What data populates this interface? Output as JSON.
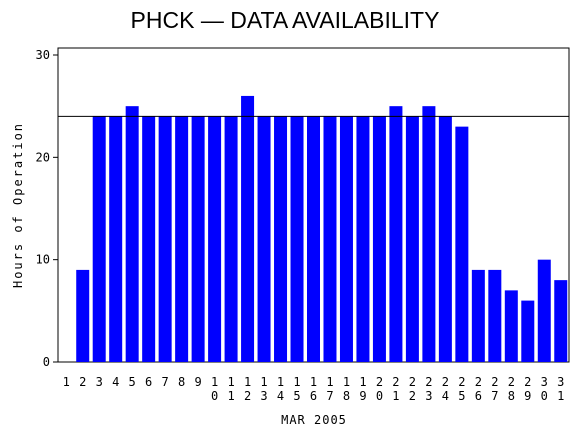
{
  "chart_data": {
    "type": "bar",
    "title": "PHCK — DATA AVAILABILITY",
    "xlabel": "MAR 2005",
    "ylabel": "Hours of Operation",
    "categories": [
      "1",
      "2",
      "3",
      "4",
      "5",
      "6",
      "7",
      "8",
      "9",
      "10",
      "11",
      "12",
      "13",
      "14",
      "15",
      "16",
      "17",
      "18",
      "19",
      "20",
      "21",
      "22",
      "23",
      "24",
      "25",
      "26",
      "27",
      "28",
      "29",
      "30",
      "31"
    ],
    "values": [
      0,
      9,
      24,
      24,
      25,
      24,
      24,
      24,
      24,
      24,
      24,
      26,
      24,
      24,
      24,
      24,
      24,
      24,
      24,
      24,
      25,
      24,
      25,
      24,
      23,
      9,
      9,
      7,
      6,
      10,
      8
    ],
    "color": "#0000ff",
    "ylim": [
      0,
      30
    ],
    "yticks": [
      0,
      10,
      20,
      30
    ],
    "reference_line": 24
  }
}
